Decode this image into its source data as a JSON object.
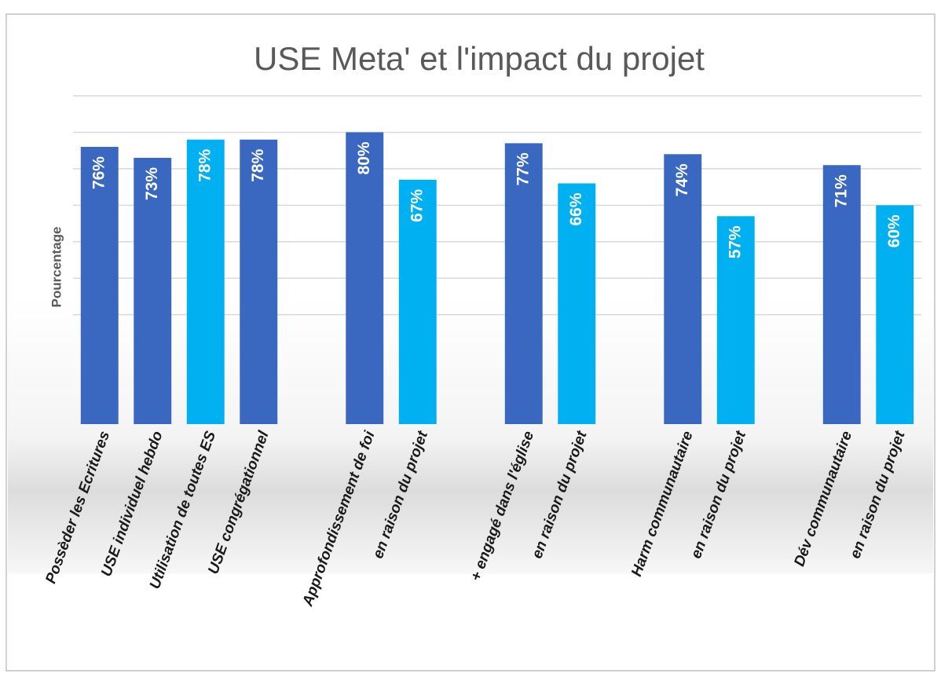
{
  "chart_data": {
    "type": "bar",
    "title": "USE Meta' et l'impact du projet",
    "y_label": "Pourcentage",
    "categories": [
      "Possèder les Ecritures",
      "USE individuel hebdo",
      "Utilisation de toutes ES",
      "USE congrégationnel",
      null,
      "Approfondissement de foi",
      "en raison du projet",
      null,
      "+ engagé dans l'église",
      "en raison du projet",
      null,
      "Harm communautaire",
      "en raison du projet",
      null,
      "Dév communautaire",
      "en raison du projet"
    ],
    "values": [
      76,
      73,
      78,
      78,
      null,
      80,
      67,
      null,
      77,
      66,
      null,
      74,
      57,
      null,
      71,
      60
    ],
    "value_labels": [
      "76%",
      "73%",
      "78%",
      "78%",
      null,
      "80%",
      "67%",
      null,
      "77%",
      "66%",
      null,
      "74%",
      "57%",
      null,
      "71%",
      "60%"
    ],
    "colors": [
      "#3a67c0",
      "#3a67c0",
      "#00b0f0",
      "#3a67c0",
      null,
      "#3a67c0",
      "#00b0f0",
      null,
      "#3a67c0",
      "#00b0f0",
      null,
      "#3a67c0",
      "#00b0f0",
      null,
      "#3a67c0",
      "#00b0f0"
    ],
    "ylim": [
      0,
      90
    ],
    "yticks": [
      30,
      40,
      50,
      60,
      70,
      80,
      90
    ],
    "tick_labels": false,
    "grid": true
  }
}
